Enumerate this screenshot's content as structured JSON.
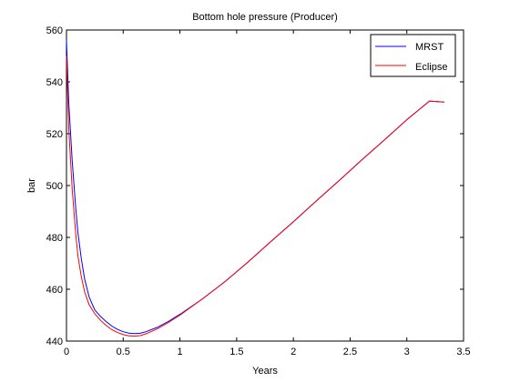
{
  "chart_data": {
    "type": "line",
    "title": "Bottom hole pressure (Producer)",
    "xlabel": "Years",
    "ylabel": "bar",
    "xlim": [
      0,
      3.5
    ],
    "ylim": [
      440,
      560
    ],
    "x_ticks": [
      "0",
      "0.5",
      "1",
      "1.5",
      "2",
      "2.5",
      "3",
      "3.5"
    ],
    "y_ticks": [
      "440",
      "460",
      "480",
      "500",
      "520",
      "540",
      "560"
    ],
    "grid": false,
    "legend_position": "top-right",
    "series": [
      {
        "name": "MRST",
        "color": "#0000ff",
        "x": [
          0,
          0.02,
          0.05,
          0.08,
          0.1,
          0.13,
          0.16,
          0.2,
          0.25,
          0.3,
          0.35,
          0.4,
          0.45,
          0.5,
          0.55,
          0.6,
          0.65,
          0.7,
          0.8,
          0.9,
          1.0,
          1.2,
          1.4,
          1.6,
          1.8,
          2.0,
          2.2,
          2.4,
          2.6,
          2.8,
          3.0,
          3.2,
          3.33
        ],
        "y": [
          556,
          532,
          510,
          492,
          482,
          472,
          464,
          457,
          452,
          449.5,
          447.5,
          445.8,
          444.5,
          443.6,
          443.1,
          442.9,
          443.0,
          443.6,
          445.3,
          447.6,
          450.3,
          456.3,
          463,
          470.5,
          478.3,
          486,
          494,
          501.8,
          509.8,
          517.5,
          525.4,
          532.6,
          532.2
        ]
      },
      {
        "name": "Eclipse",
        "color": "#ff0000",
        "x": [
          0,
          0.02,
          0.05,
          0.08,
          0.1,
          0.13,
          0.16,
          0.2,
          0.25,
          0.3,
          0.35,
          0.4,
          0.45,
          0.5,
          0.55,
          0.6,
          0.65,
          0.7,
          0.8,
          0.9,
          1.0,
          1.2,
          1.4,
          1.6,
          1.8,
          2.0,
          2.2,
          2.4,
          2.6,
          2.8,
          3.0,
          3.2,
          3.33
        ],
        "y": [
          550,
          522,
          499,
          482,
          473,
          465,
          459,
          454,
          450.5,
          448,
          446,
          444.4,
          443.3,
          442.5,
          442.0,
          441.9,
          442.1,
          442.8,
          444.7,
          447.2,
          450,
          456.3,
          463,
          470.5,
          478.3,
          486,
          494,
          501.8,
          509.8,
          517.5,
          525.4,
          532.6,
          532.2
        ]
      }
    ]
  }
}
